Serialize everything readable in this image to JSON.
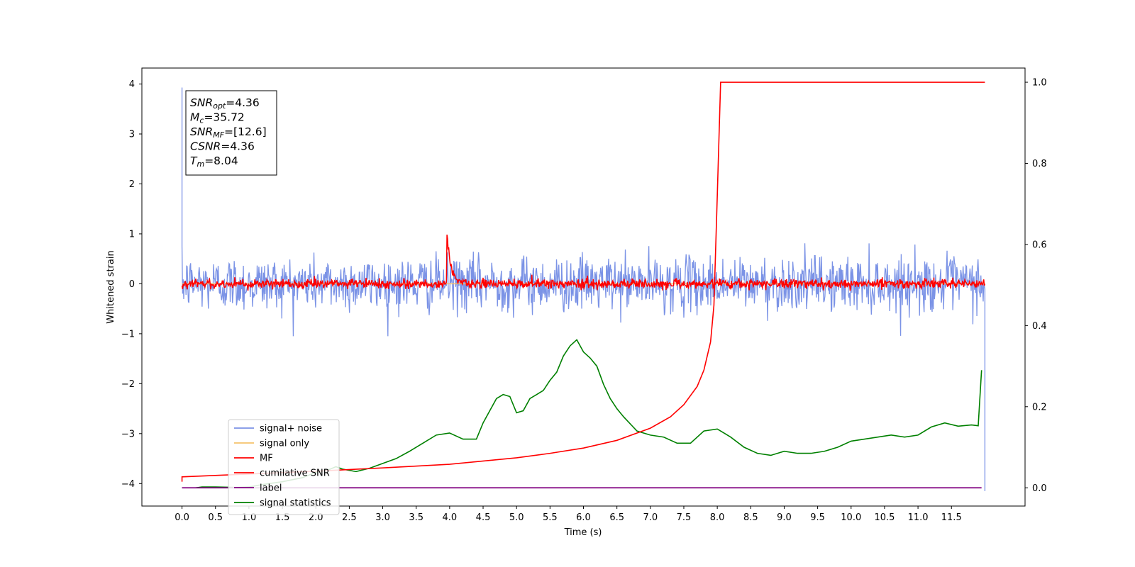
{
  "chart_data": {
    "type": "line",
    "xlabel": "Time (s)",
    "ylabel_left": "Whitened strain",
    "ylabel_right": "",
    "xlim": [
      -0.6,
      12.6
    ],
    "ylim_left": [
      -4.45,
      4.32
    ],
    "ylim_right": [
      -0.045,
      1.035
    ],
    "x_ticks": [
      0.0,
      0.5,
      1.0,
      1.5,
      2.0,
      2.5,
      3.0,
      3.5,
      4.0,
      4.5,
      5.0,
      5.5,
      6.0,
      6.5,
      7.0,
      7.5,
      8.0,
      8.5,
      9.0,
      9.5,
      10.0,
      10.5,
      11.0,
      11.5
    ],
    "x_tick_labels": [
      "0.0",
      "0.5",
      "1.0",
      "1.5",
      "2.0",
      "2.5",
      "3.0",
      "3.5",
      "4.0",
      "4.5",
      "5.0",
      "5.5",
      "6.0",
      "6.5",
      "7.0",
      "7.5",
      "8.0",
      "8.5",
      "9.0",
      "9.5",
      "10.0",
      "10.5",
      "11.0",
      "11.5"
    ],
    "y_left_ticks": [
      -4,
      -3,
      -2,
      -1,
      0,
      1,
      2,
      3,
      4
    ],
    "y_left_tick_labels": [
      "−4",
      "−3",
      "−2",
      "−1",
      "0",
      "1",
      "2",
      "3",
      "4"
    ],
    "y_right_ticks": [
      0.0,
      0.2,
      0.4,
      0.6,
      0.8,
      1.0
    ],
    "y_right_tick_labels": [
      "0.0",
      "0.2",
      "0.4",
      "0.6",
      "0.8",
      "1.0"
    ],
    "grid": false,
    "legend_position": "lower-left",
    "series": [
      {
        "name": "signal+ noise",
        "axis": "left",
        "color": "#7b93e6",
        "kind": "noise",
        "description_values": {
          "x_start": 0.0,
          "x_end": 12.0,
          "mean": 0.0,
          "typical_amplitude": 0.6,
          "min": -1.05,
          "max": 1.08,
          "start_spike": 3.93,
          "end_drop": -4.15
        }
      },
      {
        "name": "signal only",
        "axis": "left",
        "color": "#f5c26b",
        "kind": "flat",
        "x": [
          0.0,
          12.0
        ],
        "y": [
          0.0,
          0.0
        ]
      },
      {
        "name": "MF",
        "axis": "left",
        "color": "#ff0000",
        "kind": "noise",
        "description_values": {
          "x_start": 0.0,
          "x_end": 12.0,
          "mean": 0.0,
          "typical_amplitude": 0.12,
          "peak_x": 3.96,
          "peak_y": 0.98
        }
      },
      {
        "name": "cumilative SNR",
        "axis": "right",
        "color": "#ff0000",
        "kind": "line",
        "x": [
          0.0,
          0.0,
          1.0,
          2.0,
          3.0,
          4.0,
          5.0,
          5.5,
          6.0,
          6.5,
          7.0,
          7.3,
          7.5,
          7.7,
          7.8,
          7.9,
          7.95,
          8.0,
          8.05,
          12.0
        ],
        "y": [
          0.015,
          0.027,
          0.034,
          0.041,
          0.049,
          0.058,
          0.074,
          0.085,
          0.098,
          0.117,
          0.147,
          0.175,
          0.205,
          0.25,
          0.29,
          0.36,
          0.45,
          0.72,
          1.0,
          1.0
        ]
      },
      {
        "name": "label",
        "axis": "right",
        "color": "#800080",
        "kind": "line",
        "x": [
          0.0,
          11.95
        ],
        "y": [
          0.0,
          0.0
        ]
      },
      {
        "name": "signal statistics",
        "axis": "right",
        "color": "#008000",
        "kind": "line",
        "x": [
          0.0,
          0.2,
          0.3,
          0.5,
          0.8,
          1.0,
          1.2,
          1.5,
          1.8,
          2.0,
          2.2,
          2.3,
          2.4,
          2.6,
          2.8,
          3.0,
          3.2,
          3.4,
          3.6,
          3.8,
          4.0,
          4.2,
          4.4,
          4.5,
          4.6,
          4.7,
          4.8,
          4.9,
          5.0,
          5.1,
          5.2,
          5.3,
          5.4,
          5.5,
          5.6,
          5.7,
          5.8,
          5.9,
          6.0,
          6.1,
          6.2,
          6.3,
          6.4,
          6.5,
          6.6,
          6.8,
          7.0,
          7.2,
          7.4,
          7.6,
          7.8,
          8.0,
          8.2,
          8.4,
          8.6,
          8.8,
          9.0,
          9.2,
          9.4,
          9.6,
          9.8,
          10.0,
          10.2,
          10.4,
          10.6,
          10.8,
          11.0,
          11.2,
          11.4,
          11.6,
          11.8,
          11.9,
          11.95
        ],
        "y": [
          0.0,
          0.0,
          0.002,
          0.002,
          0.001,
          0.002,
          0.008,
          0.015,
          0.025,
          0.038,
          0.045,
          0.052,
          0.046,
          0.04,
          0.048,
          0.06,
          0.072,
          0.09,
          0.11,
          0.13,
          0.135,
          0.12,
          0.12,
          0.16,
          0.19,
          0.22,
          0.23,
          0.225,
          0.185,
          0.19,
          0.22,
          0.23,
          0.24,
          0.265,
          0.285,
          0.325,
          0.35,
          0.365,
          0.335,
          0.32,
          0.3,
          0.255,
          0.22,
          0.195,
          0.175,
          0.14,
          0.13,
          0.125,
          0.11,
          0.11,
          0.14,
          0.145,
          0.125,
          0.1,
          0.085,
          0.08,
          0.09,
          0.085,
          0.085,
          0.09,
          0.1,
          0.115,
          0.12,
          0.125,
          0.13,
          0.125,
          0.13,
          0.15,
          0.16,
          0.152,
          0.155,
          0.153,
          0.29
        ]
      }
    ],
    "annotation": {
      "lines": [
        {
          "base": "SNR",
          "sub": "opt",
          "value": "=4.36"
        },
        {
          "base": "M",
          "sub": "c",
          "value": "=35.72"
        },
        {
          "base": "SNR",
          "sub": "MF",
          "value": "=[12.6]"
        },
        {
          "base": "CSNR",
          "sub": "",
          "value": "=4.36"
        },
        {
          "base": "T",
          "sub": "m",
          "value": "=8.04"
        }
      ]
    }
  }
}
